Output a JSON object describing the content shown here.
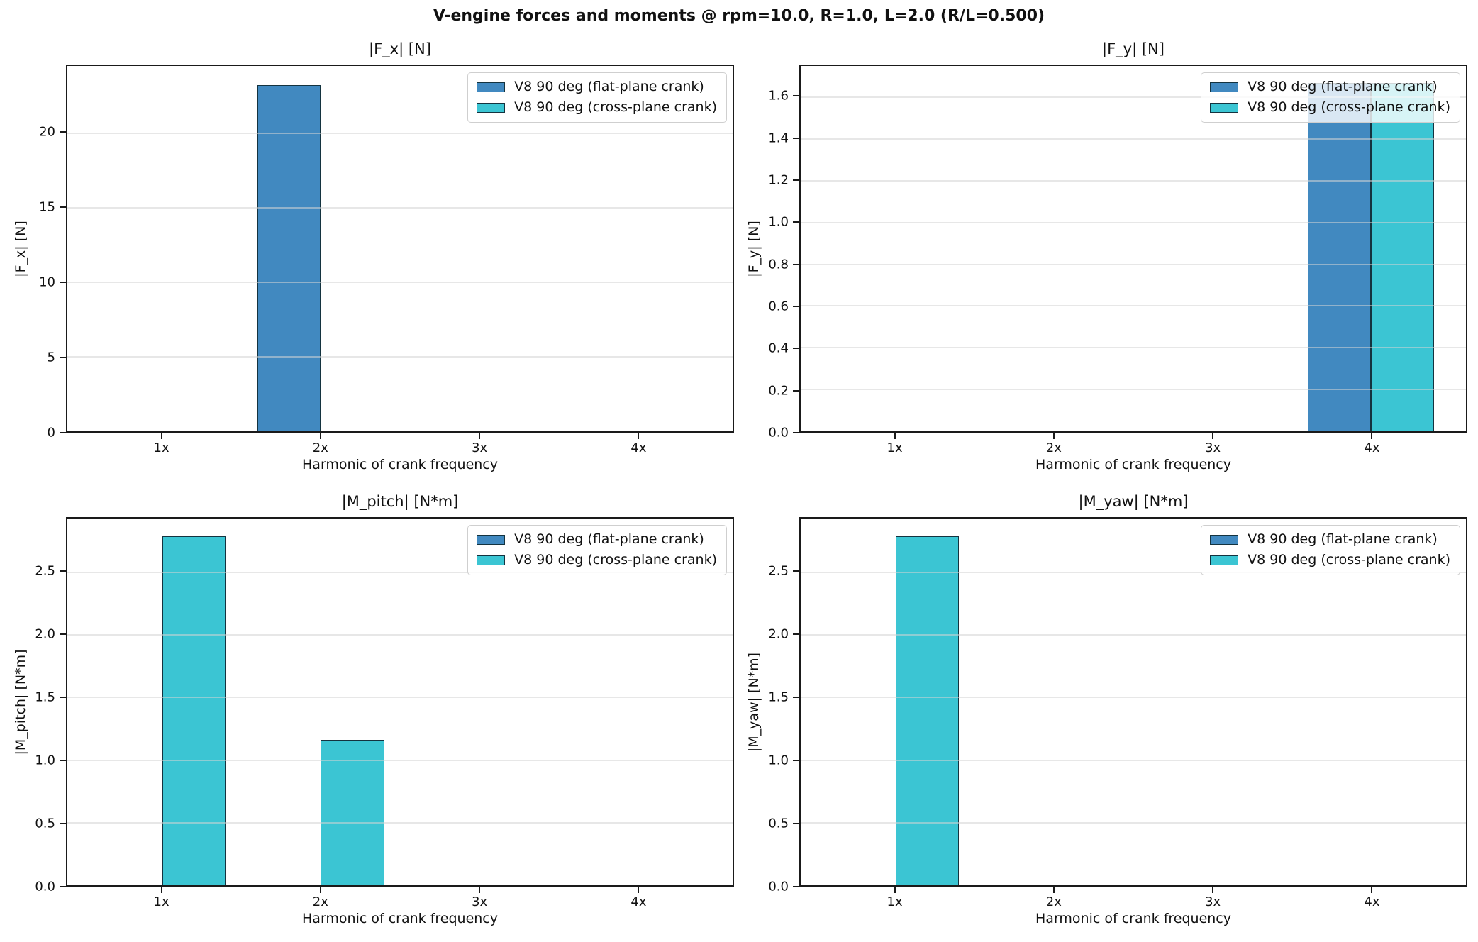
{
  "suptitle": "V-engine forces and moments  @ rpm=10.0, R=1.0, L=2.0 (R/L=0.500)",
  "shared": {
    "xlabel": "Harmonic of crank frequency",
    "categories": [
      "1x",
      "2x",
      "3x",
      "4x"
    ],
    "legend_labels": [
      "V8 90 deg (flat-plane crank)",
      "V8 90 deg (cross-plane crank)"
    ]
  },
  "colors": {
    "flat_plane_bar": "#4189c0",
    "cross_plane_bar": "#3bc5d3",
    "bar_edge": "#14333f",
    "grid": "#d3d3d3",
    "spine": "#1a1a1a",
    "legend_border": "#cfcfcf"
  },
  "chart_data": [
    {
      "type": "bar",
      "title": "|F_x|  [N]",
      "ylabel": "|F_x|  [N]",
      "xlabel": "Harmonic of crank frequency",
      "categories": [
        "1x",
        "2x",
        "3x",
        "4x"
      ],
      "x": [
        1,
        2,
        3,
        4
      ],
      "series": [
        {
          "name": "V8 90 deg (flat-plane crank)",
          "values": [
            0,
            23.2,
            0,
            0
          ]
        },
        {
          "name": "V8 90 deg (cross-plane crank)",
          "values": [
            0,
            0,
            0,
            0
          ]
        }
      ],
      "ylim": [
        0,
        24.5
      ],
      "xlim": [
        0.4,
        4.6
      ],
      "yticks": [
        0,
        5,
        10,
        15,
        20
      ],
      "ytick_labels": [
        "0",
        "5",
        "10",
        "15",
        "20"
      ],
      "grid": "y",
      "legend_position": "upper right"
    },
    {
      "type": "bar",
      "title": "|F_y|  [N]",
      "ylabel": "|F_y|  [N]",
      "xlabel": "Harmonic of crank frequency",
      "categories": [
        "1x",
        "2x",
        "3x",
        "4x"
      ],
      "x": [
        1,
        2,
        3,
        4
      ],
      "series": [
        {
          "name": "V8 90 deg (flat-plane crank)",
          "values": [
            0,
            0,
            0,
            1.67
          ]
        },
        {
          "name": "V8 90 deg (cross-plane crank)",
          "values": [
            0,
            0,
            0,
            1.67
          ]
        }
      ],
      "ylim": [
        0,
        1.75
      ],
      "xlim": [
        0.4,
        4.6
      ],
      "yticks": [
        0,
        0.2,
        0.4,
        0.6,
        0.8,
        1.0,
        1.2,
        1.4,
        1.6
      ],
      "ytick_labels": [
        "0.0",
        "0.2",
        "0.4",
        "0.6",
        "0.8",
        "1.0",
        "1.2",
        "1.4",
        "1.6"
      ],
      "grid": "y",
      "legend_position": "upper right"
    },
    {
      "type": "bar",
      "title": "|M_pitch|  [N*m]",
      "ylabel": "|M_pitch|  [N*m]",
      "xlabel": "Harmonic of crank frequency",
      "categories": [
        "1x",
        "2x",
        "3x",
        "4x"
      ],
      "x": [
        1,
        2,
        3,
        4
      ],
      "series": [
        {
          "name": "V8 90 deg (flat-plane crank)",
          "values": [
            0,
            0,
            0,
            0
          ]
        },
        {
          "name": "V8 90 deg (cross-plane crank)",
          "values": [
            2.79,
            1.16,
            0,
            0
          ]
        }
      ],
      "ylim": [
        0,
        2.93
      ],
      "xlim": [
        0.4,
        4.6
      ],
      "yticks": [
        0,
        0.5,
        1.0,
        1.5,
        2.0,
        2.5
      ],
      "ytick_labels": [
        "0.0",
        "0.5",
        "1.0",
        "1.5",
        "2.0",
        "2.5"
      ],
      "grid": "y",
      "legend_position": "upper right"
    },
    {
      "type": "bar",
      "title": "|M_yaw|  [N*m]",
      "ylabel": "|M_yaw|  [N*m]",
      "xlabel": "Harmonic of crank frequency",
      "categories": [
        "1x",
        "2x",
        "3x",
        "4x"
      ],
      "x": [
        1,
        2,
        3,
        4
      ],
      "series": [
        {
          "name": "V8 90 deg (flat-plane crank)",
          "values": [
            0,
            0,
            0,
            0
          ]
        },
        {
          "name": "V8 90 deg (cross-plane crank)",
          "values": [
            2.79,
            0,
            0,
            0
          ]
        }
      ],
      "ylim": [
        0,
        2.93
      ],
      "xlim": [
        0.4,
        4.6
      ],
      "yticks": [
        0,
        0.5,
        1.0,
        1.5,
        2.0,
        2.5
      ],
      "ytick_labels": [
        "0.0",
        "0.5",
        "1.0",
        "1.5",
        "2.0",
        "2.5"
      ],
      "grid": "y",
      "legend_position": "upper right"
    }
  ]
}
